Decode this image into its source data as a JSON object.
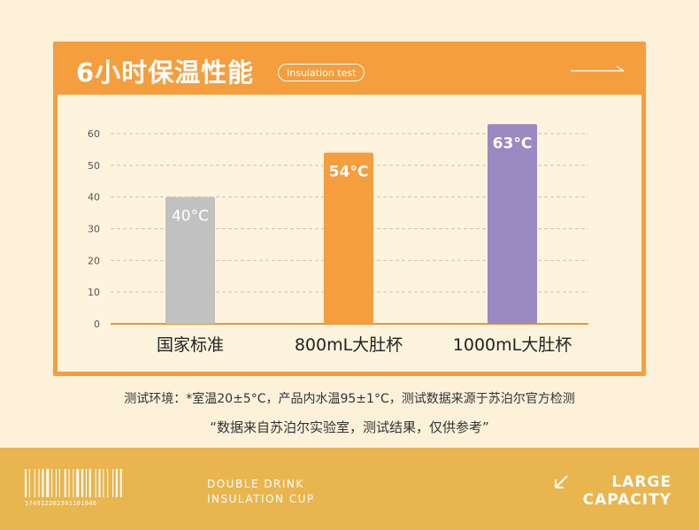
{
  "header": {
    "title": "6小时保温性能",
    "badge": "Insulation test"
  },
  "chart_data": {
    "type": "bar",
    "categories": [
      "国家标准",
      "800mL大肚杯",
      "1000mL大肚杯"
    ],
    "values": [
      40,
      54,
      63
    ],
    "value_labels": [
      "40°C",
      "54°C",
      "63°C"
    ],
    "bar_colors": [
      "#c1c1c1",
      "#f49e3e",
      "#9b89c2"
    ],
    "ylim": [
      0,
      60
    ],
    "yticks": [
      "0",
      "10",
      "20",
      "30",
      "40",
      "50",
      "60"
    ],
    "grid": true,
    "title": "",
    "xlabel": "",
    "ylabel": ""
  },
  "notes": {
    "line1": "测试环境：*室温20±5°C，产品内水温95±1°C，测试数据来源于苏泊尔官方检测",
    "line2": "“数据来自苏泊尔实验室，测试结果，仅供参考”"
  },
  "footer": {
    "barcode_number": "5749122023011010­46",
    "product_line1": "DOUBLE DRINK",
    "product_line2": "INSULATION CUP",
    "capacity_line1": "LARGE",
    "capacity_line2": "CAPACITY"
  },
  "colors": {
    "accent": "#f49e3e",
    "background": "#fdf1da",
    "footer": "#e8b54f"
  }
}
